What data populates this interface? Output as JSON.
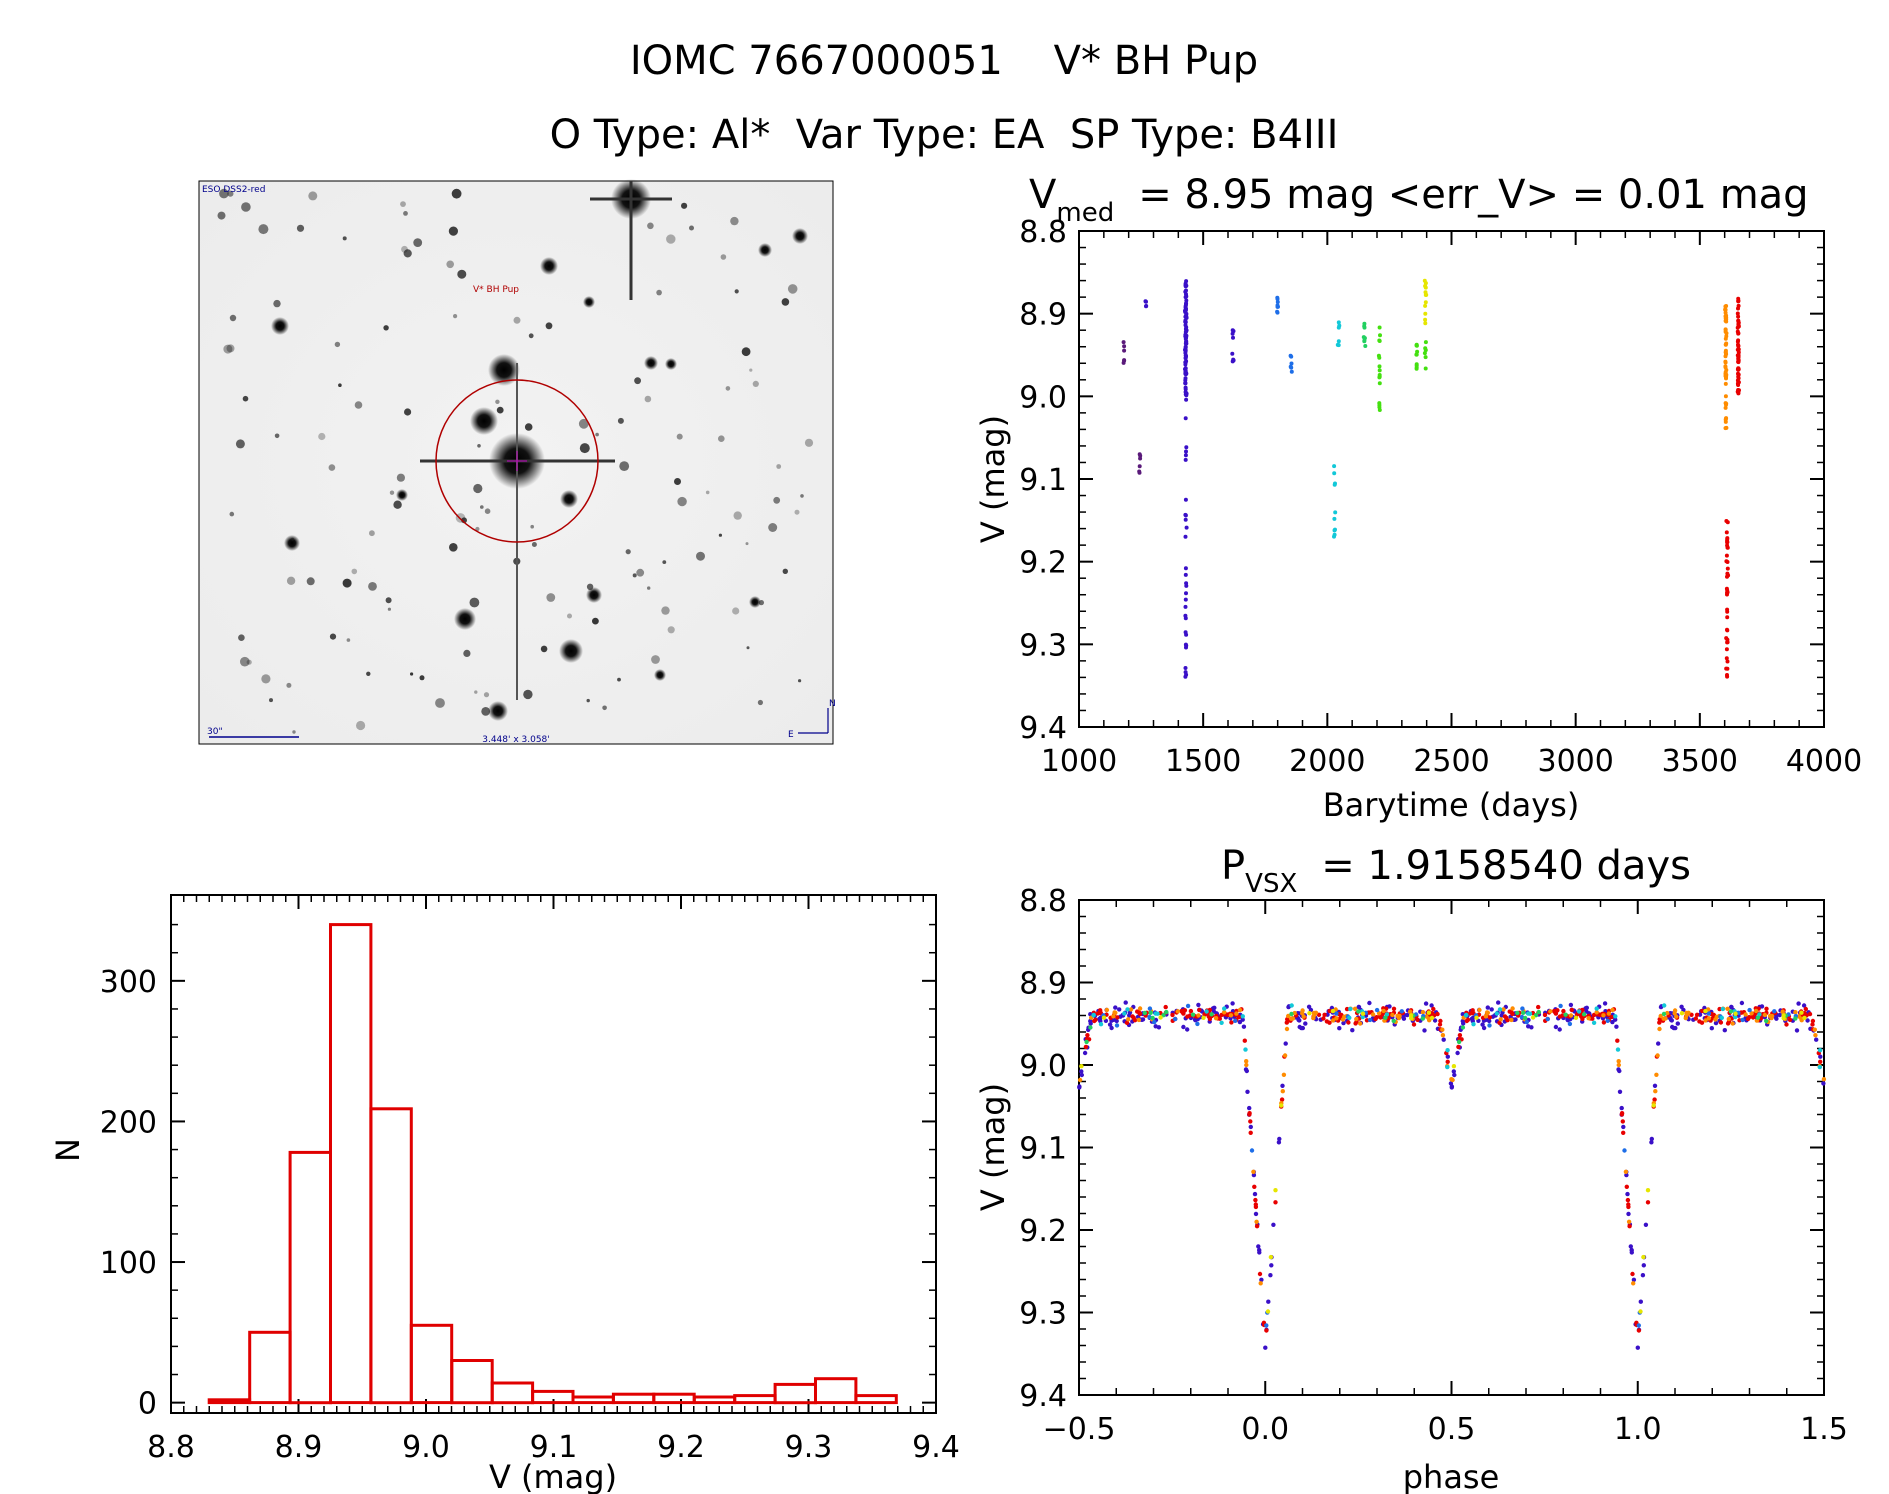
{
  "figure": {
    "title_line1": "IOMC 7667000051    V* BH Pup",
    "title_line2": "O Type: Al*  Var Type: EA  SP Type: B4III"
  },
  "sky_image": {
    "survey_label": "ESO DSS2-red",
    "target_label": "V* BH Pup",
    "scale_label": "30\"",
    "fov_label": "3.448' x 3.058'",
    "north_label": "N",
    "east_label": "E"
  },
  "colors": {
    "histogram": "#e00000",
    "epoch_palette": [
      "#5a1a7a",
      "#3a10c8",
      "#1e6ee8",
      "#12c8d8",
      "#22d060",
      "#44e010",
      "#e6e600",
      "#ff8c00",
      "#e80000"
    ]
  },
  "chart_data": [
    {
      "id": "lightcurve",
      "type": "scatter",
      "title_main": "V",
      "title_sub": "med",
      "title_rest": "= 8.95 mag <err_V> = 0.01 mag",
      "xlabel": "Barytime (days)",
      "ylabel": "V (mag)",
      "xlim": [
        1000,
        4000
      ],
      "ylim": [
        9.4,
        8.8
      ],
      "y_inverted": true,
      "xticks": [
        "1000",
        "1500",
        "2000",
        "2500",
        "3000",
        "3500",
        "4000"
      ],
      "yticks": [
        "8.8",
        "8.9",
        "9.0",
        "9.1",
        "9.2",
        "9.3",
        "9.4"
      ],
      "epochs": [
        {
          "t": 1180,
          "vmin": 8.93,
          "vmax": 8.97,
          "color": 0,
          "n": 6
        },
        {
          "t": 1245,
          "vmin": 9.05,
          "vmax": 9.1,
          "color": 0,
          "n": 6
        },
        {
          "t": 1270,
          "vmin": 8.88,
          "vmax": 8.9,
          "color": 1,
          "n": 4
        },
        {
          "t": 1430,
          "vmin": 8.86,
          "vmax": 9.0,
          "color": 1,
          "n": 90
        },
        {
          "t": 1430,
          "vmin": 9.0,
          "vmax": 9.34,
          "color": 1,
          "n": 30
        },
        {
          "t": 1620,
          "vmin": 8.92,
          "vmax": 8.96,
          "color": 1,
          "n": 8
        },
        {
          "t": 1800,
          "vmin": 8.88,
          "vmax": 8.9,
          "color": 2,
          "n": 8
        },
        {
          "t": 1855,
          "vmin": 8.95,
          "vmax": 8.98,
          "color": 2,
          "n": 6
        },
        {
          "t": 2030,
          "vmin": 9.06,
          "vmax": 9.18,
          "color": 3,
          "n": 10
        },
        {
          "t": 2045,
          "vmin": 8.91,
          "vmax": 8.94,
          "color": 3,
          "n": 6
        },
        {
          "t": 2150,
          "vmin": 8.91,
          "vmax": 8.94,
          "color": 4,
          "n": 8
        },
        {
          "t": 2210,
          "vmin": 8.91,
          "vmax": 9.02,
          "color": 5,
          "n": 16
        },
        {
          "t": 2360,
          "vmin": 8.92,
          "vmax": 8.97,
          "color": 5,
          "n": 10
        },
        {
          "t": 2395,
          "vmin": 8.86,
          "vmax": 8.92,
          "color": 6,
          "n": 12
        },
        {
          "t": 2395,
          "vmin": 8.92,
          "vmax": 8.97,
          "color": 5,
          "n": 6
        },
        {
          "t": 3605,
          "vmin": 8.89,
          "vmax": 8.98,
          "color": 7,
          "n": 40
        },
        {
          "t": 3605,
          "vmin": 8.98,
          "vmax": 9.05,
          "color": 7,
          "n": 12
        },
        {
          "t": 3610,
          "vmin": 9.15,
          "vmax": 9.34,
          "color": 8,
          "n": 40
        },
        {
          "t": 3655,
          "vmin": 8.88,
          "vmax": 9.0,
          "color": 8,
          "n": 60
        }
      ]
    },
    {
      "id": "histogram",
      "type": "bar",
      "xlabel": "V (mag)",
      "ylabel": "N",
      "xlim": [
        8.8,
        9.4
      ],
      "ylim": [
        0,
        350
      ],
      "xticks": [
        "8.8",
        "8.9",
        "9.0",
        "9.1",
        "9.2",
        "9.3",
        "9.4"
      ],
      "yticks": [
        "0",
        "100",
        "200",
        "300"
      ],
      "bin_width": 0.0317,
      "bin_start": 8.83,
      "values": [
        2,
        50,
        178,
        340,
        209,
        55,
        30,
        14,
        8,
        4,
        6,
        6,
        4,
        5,
        13,
        17,
        5
      ]
    },
    {
      "id": "phased",
      "type": "scatter",
      "title_main": "P",
      "title_sub": "VSX",
      "title_rest": "= 1.9158540 days",
      "xlabel": "phase",
      "ylabel": "V (mag)",
      "period_days": 1.915854,
      "xlim": [
        -0.5,
        1.5
      ],
      "ylim": [
        9.4,
        8.8
      ],
      "y_inverted": true,
      "xticks": [
        "−0.5",
        "0.0",
        "0.5",
        "1.0",
        "1.5"
      ],
      "yticks": [
        "8.8",
        "8.9",
        "9.0",
        "9.1",
        "9.2",
        "9.3",
        "9.4"
      ],
      "model": {
        "out_of_eclipse": 8.94,
        "primary_phase": 0.0,
        "primary_depth": 0.4,
        "primary_halfwidth": 0.06,
        "secondary_phase": 0.5,
        "secondary_depth": 0.08,
        "secondary_halfwidth": 0.035
      }
    }
  ]
}
